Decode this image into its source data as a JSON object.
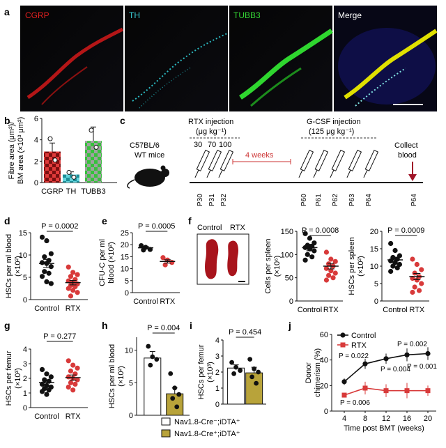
{
  "panel_letters": {
    "a": "a",
    "b": "b",
    "c": "c",
    "d": "d",
    "e": "e",
    "f": "f",
    "g": "g",
    "h": "h",
    "i": "i",
    "j": "j"
  },
  "micrograph_labels": [
    "CGRP",
    "TH",
    "TUBB3",
    "Merge"
  ],
  "colors": {
    "cgrp": "#d42020",
    "th": "#27c6cf",
    "tubb3": "#22c52a",
    "rtx": "#d83a3a",
    "dta_pos": "#b8a33a",
    "axis": "#111111"
  },
  "timeline": {
    "mouse_label_1": "C57BL/6",
    "mouse_label_2": "WT mice",
    "rtx_title": "RTX injection",
    "rtx_dose": "(μg kg⁻¹)",
    "rtx_doses": [
      "30",
      "70",
      "100"
    ],
    "interval": "4 weeks",
    "gcsf_title": "G-CSF injection",
    "gcsf_dose": "(125 μg kg⁻¹)",
    "collect_1": "Collect",
    "collect_2": "blood",
    "days": [
      "P30",
      "P31",
      "P32",
      "P60",
      "P61",
      "P62",
      "P63",
      "P64",
      "P64"
    ]
  },
  "legend_h": {
    "item1": "Nav1.8-Cre⁻;iDTA⁺",
    "item2": "Nav1.8-Cre⁺;iDTA⁺"
  },
  "chart_data": [
    {
      "id": "b",
      "type": "bar",
      "categories": [
        "CGRP",
        "TH",
        "TUBB3"
      ],
      "values": [
        2.9,
        0.75,
        3.9
      ],
      "errors": [
        0.8,
        0.25,
        1.3
      ],
      "points": [
        [
          4.1,
          2.1
        ],
        [
          0.95,
          0.5
        ],
        [
          4.9,
          3.3
        ]
      ],
      "ylabel_1": "Fibre area (μm²)/",
      "ylabel_2": "BM area (×10³ μm²)",
      "ylim": [
        0,
        6
      ],
      "yticks": [
        "0",
        "2",
        "4",
        "6"
      ]
    },
    {
      "id": "d",
      "type": "scatter",
      "categories": [
        "Control",
        "RTX"
      ],
      "means": [
        8.1,
        3.8
      ],
      "sems": [
        0.9,
        0.5
      ],
      "points": [
        [
          14,
          13.2,
          10.3,
          9.6,
          8.8,
          8.3,
          8.1,
          7.4,
          6.3,
          5.9,
          5.2,
          4.0,
          3.6
        ],
        [
          7.3,
          6.1,
          5.6,
          5.2,
          4.5,
          4.2,
          3.9,
          3.5,
          3.2,
          2.9,
          2.5,
          2.1,
          1.6,
          0.8
        ]
      ],
      "ylabel": "HSCs per ml blood",
      "yunit": "(×10²)",
      "p": "P = 0.0002",
      "ylim": [
        0,
        15
      ],
      "yticks": [
        "0",
        "5",
        "10",
        "15"
      ]
    },
    {
      "id": "e",
      "type": "scatter",
      "categories": [
        "Control",
        "RTX"
      ],
      "means": [
        18.7,
        13.0
      ],
      "sems": [
        0.5,
        0.7
      ],
      "points": [
        [
          19.6,
          18.9,
          18.0,
          17.8
        ],
        [
          14.6,
          13.6,
          12.6,
          11.6
        ]
      ],
      "ylabel_1": "CFU-C per ml",
      "ylabel_2": "blood (×10²)",
      "p": "P = 0.0005",
      "ylim": [
        0,
        25
      ],
      "yticks": [
        "0",
        "5",
        "10",
        "15",
        "20",
        "25"
      ]
    },
    {
      "id": "f1",
      "type": "scatter",
      "categories": [
        "Control",
        "RTX"
      ],
      "means": [
        115,
        75
      ],
      "sems": [
        7,
        6
      ],
      "points": [
        [
          145,
          135,
          125,
          120,
          118,
          115,
          112,
          108,
          100,
          95,
          88
        ],
        [
          105,
          90,
          85,
          80,
          75,
          70,
          65,
          60,
          55,
          50,
          45
        ]
      ],
      "ylabel": "Cells per spleen",
      "yunit": "(×10⁶)",
      "p": "P = 0.0008",
      "ylim": [
        0,
        150
      ],
      "yticks": [
        "0",
        "50",
        "100",
        "150"
      ]
    },
    {
      "id": "f2",
      "type": "scatter",
      "categories": [
        "Control",
        "RTX"
      ],
      "means": [
        11.8,
        7.0
      ],
      "sems": [
        0.8,
        0.9
      ],
      "points": [
        [
          16.5,
          14.5,
          13.0,
          12.5,
          12.0,
          11.5,
          11.0,
          10.5,
          10.0,
          9.5,
          8.5
        ],
        [
          12.0,
          10.5,
          9.0,
          8.0,
          7.0,
          6.5,
          6.0,
          5.0,
          4.0,
          3.0,
          2.5
        ]
      ],
      "ylabel": "HSCs per spleen",
      "yunit": "(×10²)",
      "p": "P = 0.0009",
      "ylim": [
        0,
        20
      ],
      "yticks": [
        "0",
        "5",
        "10",
        "15",
        "20"
      ]
    },
    {
      "id": "g",
      "type": "scatter",
      "categories": [
        "Control",
        "RTX"
      ],
      "means": [
        1.7,
        2.05
      ],
      "sems": [
        0.18,
        0.18
      ],
      "points": [
        [
          2.6,
          2.3,
          2.1,
          1.9,
          1.8,
          1.6,
          1.5,
          1.4,
          1.3,
          1.2,
          1.1,
          0.9
        ],
        [
          3.2,
          2.9,
          2.7,
          2.5,
          2.3,
          2.1,
          2.0,
          1.9,
          1.7,
          1.6,
          1.4,
          1.2
        ]
      ],
      "ylabel": "HSCs per femur",
      "yunit": "(×10³)",
      "p": "P = 0.277",
      "ylim": [
        0,
        4
      ],
      "yticks": [
        "0",
        "1",
        "2",
        "3",
        "4"
      ]
    },
    {
      "id": "h",
      "type": "bar",
      "categories": [
        "Nav1.8-Cre⁻;iDTA⁺",
        "Nav1.8-Cre⁺;iDTA⁺"
      ],
      "values": [
        8.8,
        3.3
      ],
      "errors": [
        1.0,
        0.9
      ],
      "points": [
        [
          10.6,
          9.0,
          8.6,
          7.7
        ],
        [
          6.4,
          4.2,
          3.2,
          2.6,
          1.3
        ]
      ],
      "ylabel": "HSCs per ml blood",
      "yunit": "(×10²)",
      "p": "P = 0.004",
      "ylim": [
        0,
        12
      ],
      "yticks": [
        "0",
        "5",
        "10"
      ]
    },
    {
      "id": "i",
      "type": "bar",
      "categories": [
        "Nav1.8-Cre⁻;iDTA⁺",
        "Nav1.8-Cre⁺;iDTA⁺"
      ],
      "values": [
        2.25,
        1.95
      ],
      "errors": [
        0.2,
        0.35
      ],
      "points": [
        [
          2.6,
          2.3,
          2.1,
          1.9
        ],
        [
          2.8,
          2.2,
          2.0,
          1.7,
          1.3
        ]
      ],
      "ylabel": "HSCs per femur",
      "yunit": "(×10³)",
      "p": "P = 0.454",
      "ylim": [
        0,
        4
      ],
      "yticks": [
        "0",
        "1",
        "2",
        "3",
        "4"
      ]
    },
    {
      "id": "j",
      "type": "line",
      "x": [
        4,
        8,
        12,
        16,
        20
      ],
      "xticks": [
        "4",
        "8",
        "12",
        "16",
        "20"
      ],
      "series": [
        {
          "name": "Control",
          "values": [
            23,
            37,
            41,
            44,
            45
          ],
          "errors": [
            2.5,
            4,
            4,
            5,
            5
          ]
        },
        {
          "name": "RTX",
          "values": [
            12.5,
            18,
            16,
            16,
            16
          ],
          "errors": [
            1.5,
            5,
            5,
            6,
            4
          ]
        }
      ],
      "pvalues": [
        "P = 0.006",
        "P = 0.022",
        "P = 0.004",
        "P = 0.002",
        "P = 0.001"
      ],
      "ylabel_1": "Donor",
      "ylabel_2": "chimerism (%)",
      "xlabel": "Time post BMT (weeks)",
      "ylim": [
        0,
        60
      ],
      "yticks": [
        "0",
        "20",
        "40",
        "60"
      ]
    }
  ]
}
